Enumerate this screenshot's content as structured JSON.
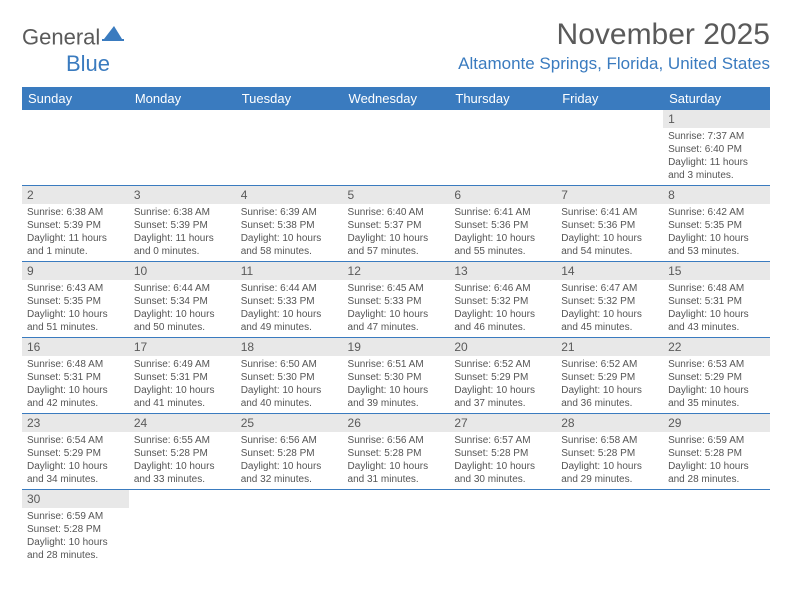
{
  "logo": {
    "part1": "General",
    "part2": "Blue"
  },
  "title": "November 2025",
  "location": "Altamonte Springs, Florida, United States",
  "daysOfWeek": [
    "Sunday",
    "Monday",
    "Tuesday",
    "Wednesday",
    "Thursday",
    "Friday",
    "Saturday"
  ],
  "colors": {
    "headerBg": "#3a7bbf",
    "headerText": "#ffffff",
    "dayNumBg": "#e8e8e8",
    "text": "#5a5a5a",
    "accent": "#3a7bbf"
  },
  "cells": [
    {
      "n": "",
      "sr": "",
      "ss": "",
      "dl": ""
    },
    {
      "n": "",
      "sr": "",
      "ss": "",
      "dl": ""
    },
    {
      "n": "",
      "sr": "",
      "ss": "",
      "dl": ""
    },
    {
      "n": "",
      "sr": "",
      "ss": "",
      "dl": ""
    },
    {
      "n": "",
      "sr": "",
      "ss": "",
      "dl": ""
    },
    {
      "n": "",
      "sr": "",
      "ss": "",
      "dl": ""
    },
    {
      "n": "1",
      "sr": "Sunrise: 7:37 AM",
      "ss": "Sunset: 6:40 PM",
      "dl": "Daylight: 11 hours and 3 minutes."
    },
    {
      "n": "2",
      "sr": "Sunrise: 6:38 AM",
      "ss": "Sunset: 5:39 PM",
      "dl": "Daylight: 11 hours and 1 minute."
    },
    {
      "n": "3",
      "sr": "Sunrise: 6:38 AM",
      "ss": "Sunset: 5:39 PM",
      "dl": "Daylight: 11 hours and 0 minutes."
    },
    {
      "n": "4",
      "sr": "Sunrise: 6:39 AM",
      "ss": "Sunset: 5:38 PM",
      "dl": "Daylight: 10 hours and 58 minutes."
    },
    {
      "n": "5",
      "sr": "Sunrise: 6:40 AM",
      "ss": "Sunset: 5:37 PM",
      "dl": "Daylight: 10 hours and 57 minutes."
    },
    {
      "n": "6",
      "sr": "Sunrise: 6:41 AM",
      "ss": "Sunset: 5:36 PM",
      "dl": "Daylight: 10 hours and 55 minutes."
    },
    {
      "n": "7",
      "sr": "Sunrise: 6:41 AM",
      "ss": "Sunset: 5:36 PM",
      "dl": "Daylight: 10 hours and 54 minutes."
    },
    {
      "n": "8",
      "sr": "Sunrise: 6:42 AM",
      "ss": "Sunset: 5:35 PM",
      "dl": "Daylight: 10 hours and 53 minutes."
    },
    {
      "n": "9",
      "sr": "Sunrise: 6:43 AM",
      "ss": "Sunset: 5:35 PM",
      "dl": "Daylight: 10 hours and 51 minutes."
    },
    {
      "n": "10",
      "sr": "Sunrise: 6:44 AM",
      "ss": "Sunset: 5:34 PM",
      "dl": "Daylight: 10 hours and 50 minutes."
    },
    {
      "n": "11",
      "sr": "Sunrise: 6:44 AM",
      "ss": "Sunset: 5:33 PM",
      "dl": "Daylight: 10 hours and 49 minutes."
    },
    {
      "n": "12",
      "sr": "Sunrise: 6:45 AM",
      "ss": "Sunset: 5:33 PM",
      "dl": "Daylight: 10 hours and 47 minutes."
    },
    {
      "n": "13",
      "sr": "Sunrise: 6:46 AM",
      "ss": "Sunset: 5:32 PM",
      "dl": "Daylight: 10 hours and 46 minutes."
    },
    {
      "n": "14",
      "sr": "Sunrise: 6:47 AM",
      "ss": "Sunset: 5:32 PM",
      "dl": "Daylight: 10 hours and 45 minutes."
    },
    {
      "n": "15",
      "sr": "Sunrise: 6:48 AM",
      "ss": "Sunset: 5:31 PM",
      "dl": "Daylight: 10 hours and 43 minutes."
    },
    {
      "n": "16",
      "sr": "Sunrise: 6:48 AM",
      "ss": "Sunset: 5:31 PM",
      "dl": "Daylight: 10 hours and 42 minutes."
    },
    {
      "n": "17",
      "sr": "Sunrise: 6:49 AM",
      "ss": "Sunset: 5:31 PM",
      "dl": "Daylight: 10 hours and 41 minutes."
    },
    {
      "n": "18",
      "sr": "Sunrise: 6:50 AM",
      "ss": "Sunset: 5:30 PM",
      "dl": "Daylight: 10 hours and 40 minutes."
    },
    {
      "n": "19",
      "sr": "Sunrise: 6:51 AM",
      "ss": "Sunset: 5:30 PM",
      "dl": "Daylight: 10 hours and 39 minutes."
    },
    {
      "n": "20",
      "sr": "Sunrise: 6:52 AM",
      "ss": "Sunset: 5:29 PM",
      "dl": "Daylight: 10 hours and 37 minutes."
    },
    {
      "n": "21",
      "sr": "Sunrise: 6:52 AM",
      "ss": "Sunset: 5:29 PM",
      "dl": "Daylight: 10 hours and 36 minutes."
    },
    {
      "n": "22",
      "sr": "Sunrise: 6:53 AM",
      "ss": "Sunset: 5:29 PM",
      "dl": "Daylight: 10 hours and 35 minutes."
    },
    {
      "n": "23",
      "sr": "Sunrise: 6:54 AM",
      "ss": "Sunset: 5:29 PM",
      "dl": "Daylight: 10 hours and 34 minutes."
    },
    {
      "n": "24",
      "sr": "Sunrise: 6:55 AM",
      "ss": "Sunset: 5:28 PM",
      "dl": "Daylight: 10 hours and 33 minutes."
    },
    {
      "n": "25",
      "sr": "Sunrise: 6:56 AM",
      "ss": "Sunset: 5:28 PM",
      "dl": "Daylight: 10 hours and 32 minutes."
    },
    {
      "n": "26",
      "sr": "Sunrise: 6:56 AM",
      "ss": "Sunset: 5:28 PM",
      "dl": "Daylight: 10 hours and 31 minutes."
    },
    {
      "n": "27",
      "sr": "Sunrise: 6:57 AM",
      "ss": "Sunset: 5:28 PM",
      "dl": "Daylight: 10 hours and 30 minutes."
    },
    {
      "n": "28",
      "sr": "Sunrise: 6:58 AM",
      "ss": "Sunset: 5:28 PM",
      "dl": "Daylight: 10 hours and 29 minutes."
    },
    {
      "n": "29",
      "sr": "Sunrise: 6:59 AM",
      "ss": "Sunset: 5:28 PM",
      "dl": "Daylight: 10 hours and 28 minutes."
    },
    {
      "n": "30",
      "sr": "Sunrise: 6:59 AM",
      "ss": "Sunset: 5:28 PM",
      "dl": "Daylight: 10 hours and 28 minutes."
    },
    {
      "n": "",
      "sr": "",
      "ss": "",
      "dl": ""
    },
    {
      "n": "",
      "sr": "",
      "ss": "",
      "dl": ""
    },
    {
      "n": "",
      "sr": "",
      "ss": "",
      "dl": ""
    },
    {
      "n": "",
      "sr": "",
      "ss": "",
      "dl": ""
    },
    {
      "n": "",
      "sr": "",
      "ss": "",
      "dl": ""
    },
    {
      "n": "",
      "sr": "",
      "ss": "",
      "dl": ""
    }
  ]
}
